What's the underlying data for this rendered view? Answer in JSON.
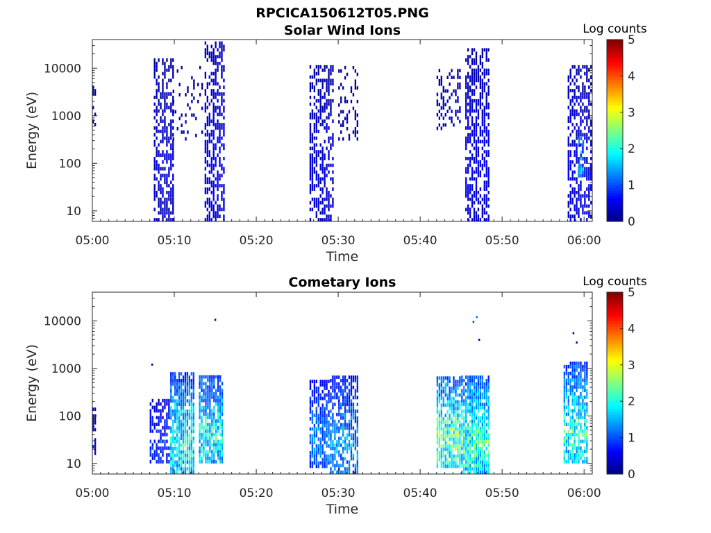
{
  "figure_title": "RPCICA150612T05.PNG",
  "chart_data": [
    {
      "type": "heatmap",
      "title": "Solar Wind Ions",
      "xlabel": "Time",
      "ylabel": "Energy (eV)",
      "x_ticks": [
        "05:00",
        "05:10",
        "05:20",
        "05:30",
        "05:40",
        "05:50",
        "06:00"
      ],
      "x_range_minutes": [
        0,
        61
      ],
      "y_scale": "log",
      "y_ticks": [
        10,
        100,
        1000,
        10000
      ],
      "y_tick_labels": [
        "10",
        "100",
        "1000",
        "10000"
      ],
      "y_range": [
        6,
        40000
      ],
      "colorbar": {
        "label": "Log counts",
        "min": 0,
        "max": 5,
        "ticks": [
          "0",
          "1",
          "2",
          "3",
          "4",
          "5"
        ],
        "colormap": "jet"
      },
      "bursts": [
        {
          "t_start": 0.0,
          "t_end": 0.3,
          "e_min": 600,
          "e_max": 7000,
          "level": 0.3,
          "density": 0.35
        },
        {
          "t_start": 7.5,
          "t_end": 9.8,
          "e_min": 6,
          "e_max": 15000,
          "level": 0.4,
          "density": 0.55
        },
        {
          "t_start": 9.8,
          "t_end": 13.5,
          "e_min": 300,
          "e_max": 10000,
          "level": 0.2,
          "density": 0.12
        },
        {
          "t_start": 13.7,
          "t_end": 16.2,
          "e_min": 6,
          "e_max": 35000,
          "level": 0.5,
          "density": 0.55
        },
        {
          "t_start": 26.5,
          "t_end": 29.3,
          "e_min": 6,
          "e_max": 10000,
          "level": 0.4,
          "density": 0.55
        },
        {
          "t_start": 30.0,
          "t_end": 32.5,
          "e_min": 300,
          "e_max": 10000,
          "level": 0.2,
          "density": 0.25
        },
        {
          "t_start": 42.0,
          "t_end": 45.0,
          "e_min": 500,
          "e_max": 9000,
          "level": 0.3,
          "density": 0.3
        },
        {
          "t_start": 45.5,
          "t_end": 48.5,
          "e_min": 6,
          "e_max": 25000,
          "level": 0.5,
          "density": 0.6
        },
        {
          "t_start": 58.0,
          "t_end": 61.0,
          "e_min": 6,
          "e_max": 10000,
          "level": 0.5,
          "density": 0.55
        },
        {
          "t_start": 59.3,
          "t_end": 59.9,
          "e_min": 50,
          "e_max": 400,
          "level": 1.6,
          "density": 0.6
        }
      ]
    },
    {
      "type": "heatmap",
      "title": "Cometary Ions",
      "xlabel": "Time",
      "ylabel": "Energy (eV)",
      "x_ticks": [
        "05:00",
        "05:10",
        "05:20",
        "05:30",
        "05:40",
        "05:50",
        "06:00"
      ],
      "x_range_minutes": [
        0,
        61
      ],
      "y_scale": "log",
      "y_ticks": [
        10,
        100,
        1000,
        10000
      ],
      "y_tick_labels": [
        "10",
        "100",
        "1000",
        "10000"
      ],
      "y_range": [
        6,
        40000
      ],
      "colorbar": {
        "label": "Log counts",
        "min": 0,
        "max": 5,
        "ticks": [
          "0",
          "1",
          "2",
          "3",
          "4",
          "5"
        ],
        "colormap": "jet"
      },
      "bursts": [
        {
          "t_start": 0.0,
          "t_end": 0.3,
          "e_min": 15,
          "e_max": 150,
          "level": 0.5,
          "density": 0.6
        },
        {
          "t_start": 7.0,
          "t_end": 9.5,
          "e_min": 10,
          "e_max": 200,
          "level": 0.8,
          "density": 0.5
        },
        {
          "t_start": 9.5,
          "t_end": 12.5,
          "e_min": 6,
          "e_max": 800,
          "level": 1.8,
          "density": 0.85
        },
        {
          "t_start": 13.0,
          "t_end": 16.0,
          "e_min": 10,
          "e_max": 700,
          "level": 1.8,
          "density": 0.8
        },
        {
          "t_start": 26.5,
          "t_end": 29.0,
          "e_min": 8,
          "e_max": 500,
          "level": 1.2,
          "density": 0.7
        },
        {
          "t_start": 29.0,
          "t_end": 32.5,
          "e_min": 6,
          "e_max": 700,
          "level": 1.3,
          "density": 0.7
        },
        {
          "t_start": 42.0,
          "t_end": 45.0,
          "e_min": 8,
          "e_max": 600,
          "level": 2.2,
          "density": 0.8
        },
        {
          "t_start": 45.0,
          "t_end": 48.5,
          "e_min": 6,
          "e_max": 700,
          "level": 2.0,
          "density": 0.85
        },
        {
          "t_start": 57.5,
          "t_end": 60.5,
          "e_min": 10,
          "e_max": 1200,
          "level": 1.9,
          "density": 0.75
        }
      ],
      "points": [
        {
          "t": 7.3,
          "e": 1200,
          "level": 0.1
        },
        {
          "t": 15.0,
          "e": 10500,
          "level": 0.1
        },
        {
          "t": 46.5,
          "e": 9500,
          "level": 1.0
        },
        {
          "t": 46.9,
          "e": 12000,
          "level": 1.2
        },
        {
          "t": 47.2,
          "e": 4000,
          "level": 0.3
        },
        {
          "t": 58.7,
          "e": 5500,
          "level": 0.2
        },
        {
          "t": 59.1,
          "e": 3500,
          "level": 0.1
        }
      ]
    }
  ]
}
